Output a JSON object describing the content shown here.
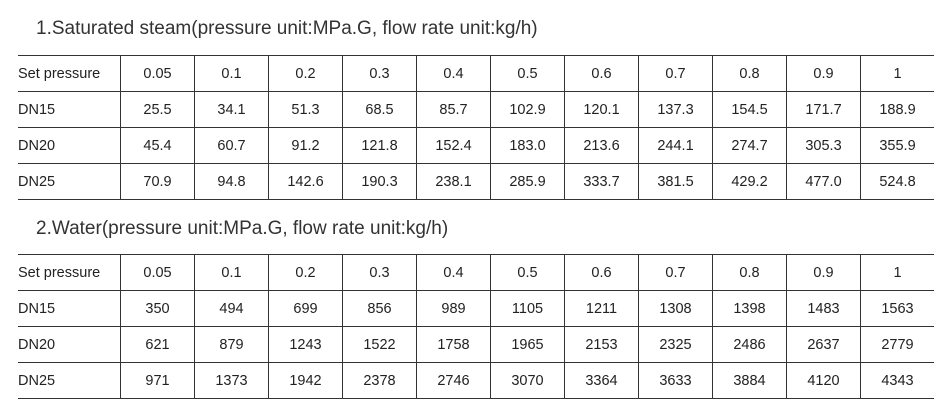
{
  "sections": [
    {
      "title": "1.Saturated steam(pressure unit:MPa.G, flow rate unit:kg/h)",
      "table": {
        "header": [
          "Set pressure",
          "0.05",
          "0.1",
          "0.2",
          "0.3",
          "0.4",
          "0.5",
          "0.6",
          "0.7",
          "0.8",
          "0.9",
          "1"
        ],
        "rows": [
          [
            "DN15",
            "25.5",
            "34.1",
            "51.3",
            "68.5",
            "85.7",
            "102.9",
            "120.1",
            "137.3",
            "154.5",
            "171.7",
            "188.9"
          ],
          [
            "DN20",
            "45.4",
            "60.7",
            "91.2",
            "121.8",
            "152.4",
            "183.0",
            "213.6",
            "244.1",
            "274.7",
            "305.3",
            "355.9"
          ],
          [
            "DN25",
            "70.9",
            "94.8",
            "142.6",
            "190.3",
            "238.1",
            "285.9",
            "333.7",
            "381.5",
            "429.2",
            "477.0",
            "524.8"
          ]
        ]
      }
    },
    {
      "title": "2.Water(pressure unit:MPa.G, flow rate unit:kg/h)",
      "table": {
        "header": [
          "Set pressure",
          "0.05",
          "0.1",
          "0.2",
          "0.3",
          "0.4",
          "0.5",
          "0.6",
          "0.7",
          "0.8",
          "0.9",
          "1"
        ],
        "rows": [
          [
            "DN15",
            "350",
            "494",
            "699",
            "856",
            "989",
            "1105",
            "1211",
            "1308",
            "1398",
            "1483",
            "1563"
          ],
          [
            "DN20",
            "621",
            "879",
            "1243",
            "1522",
            "1758",
            "1965",
            "2153",
            "2325",
            "2486",
            "2637",
            "2779"
          ],
          [
            "DN25",
            "971",
            "1373",
            "1942",
            "2378",
            "2746",
            "3070",
            "3364",
            "3633",
            "3884",
            "4120",
            "4343"
          ]
        ]
      }
    }
  ]
}
